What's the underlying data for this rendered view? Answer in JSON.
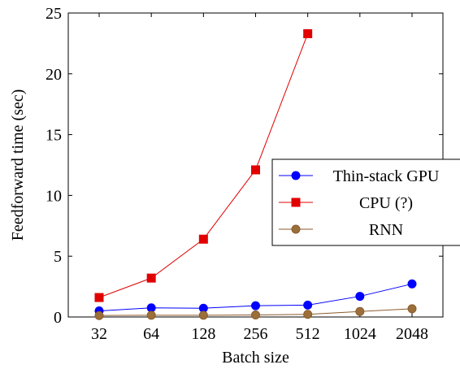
{
  "chart_data": {
    "type": "line",
    "categories": [
      "32",
      "64",
      "128",
      "256",
      "512",
      "1024",
      "2048"
    ],
    "xlabel": "Batch size",
    "ylabel": "Feedforward time (sec)",
    "ylim": [
      0,
      25
    ],
    "yticks": [
      0,
      5,
      10,
      15,
      20,
      25
    ],
    "grid": false,
    "legend_position": "right",
    "series": [
      {
        "name": "Thin-stack GPU",
        "color": "#0000ff",
        "marker": "circle",
        "values": [
          0.5,
          0.75,
          0.72,
          0.93,
          0.98,
          1.7,
          2.72
        ]
      },
      {
        "name": "CPU (?)",
        "color": "#e00000",
        "marker": "square",
        "values": [
          1.6,
          3.2,
          6.4,
          12.1,
          23.3,
          null,
          null
        ]
      },
      {
        "name": "RNN",
        "color": "#8b5a2b",
        "fill": "#9b6f3a",
        "marker": "circle",
        "values": [
          0.12,
          0.14,
          0.14,
          0.17,
          0.22,
          0.45,
          0.68
        ]
      }
    ]
  }
}
